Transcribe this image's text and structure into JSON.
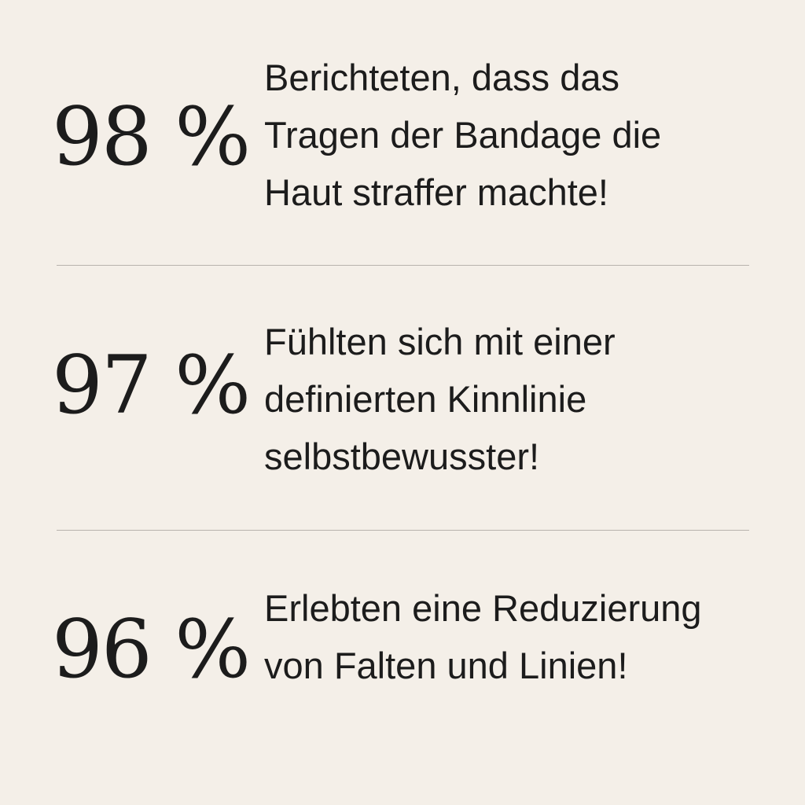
{
  "colors": {
    "background": "#f4efe8",
    "text": "#1c1c1c",
    "divider": "#b8b3ad"
  },
  "stats": [
    {
      "value": "98 %",
      "lines": [
        "Berichteten, dass das",
        "Tragen der Bandage die",
        "Haut straffer machte!"
      ]
    },
    {
      "value": "97 %",
      "lines": [
        "Fühlten sich mit einer",
        "definierten Kinnlinie",
        "selbstbewusster!"
      ]
    },
    {
      "value": "96 %",
      "lines": [
        "Erlebten eine Reduzierung",
        "von Falten und Linien!"
      ]
    }
  ]
}
